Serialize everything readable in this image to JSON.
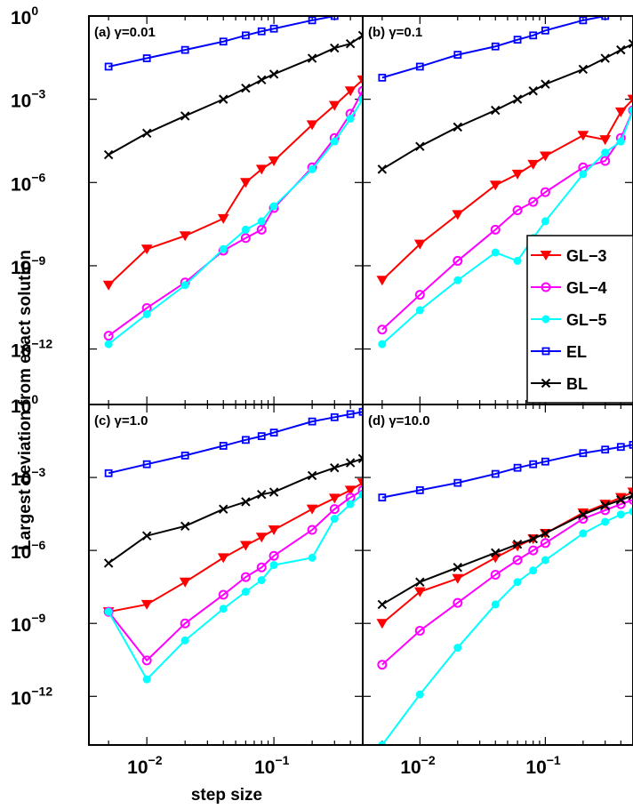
{
  "chart_data": {
    "type": "line",
    "xlabel": "step size",
    "ylabel": "Largest deviation from exact solution",
    "xscale": "log",
    "yscale": "log",
    "xlim": [
      0.0035,
      0.5
    ],
    "ylim": [
      1e-14,
      1
    ],
    "x_ticks": [
      {
        "base": "10",
        "exp": "−2",
        "value": 0.01
      },
      {
        "base": "10",
        "exp": "−1",
        "value": 0.1
      }
    ],
    "y_ticks": [
      {
        "base": "10",
        "exp": "0",
        "value": 1
      },
      {
        "base": "10",
        "exp": "−3",
        "value": 0.001
      },
      {
        "base": "10",
        "exp": "−6",
        "value": 1e-06
      },
      {
        "base": "10",
        "exp": "−9",
        "value": 1e-09
      },
      {
        "base": "10",
        "exp": "−12",
        "value": 1e-12
      }
    ],
    "legend": {
      "placement": "right",
      "entries": [
        {
          "label": "GL−3",
          "color": "#ff0000",
          "marker": "triangle-down"
        },
        {
          "label": "GL−4",
          "color": "#ff00ff",
          "marker": "circle-open"
        },
        {
          "label": "GL−5",
          "color": "#00ffff",
          "marker": "circle-filled"
        },
        {
          "label": "EL",
          "color": "#0000ff",
          "marker": "square-open"
        },
        {
          "label": "BL",
          "color": "#000000",
          "marker": "x"
        }
      ]
    },
    "x": [
      0.005,
      0.01,
      0.02,
      0.04,
      0.06,
      0.08,
      0.1,
      0.2,
      0.3,
      0.4,
      0.5
    ],
    "panels": [
      {
        "title": "(a) γ=0.01",
        "series": [
          {
            "name": "GL−3",
            "values": [
              2e-10,
              4e-09,
              1.2e-08,
              5e-08,
              1e-06,
              3e-06,
              6e-06,
              0.00012,
              0.0006,
              0.002,
              0.005
            ]
          },
          {
            "name": "GL−4",
            "values": [
              3e-12,
              3e-11,
              2.5e-10,
              3.5e-09,
              1e-08,
              2e-08,
              1.2e-07,
              3.5e-06,
              4e-05,
              0.0003,
              0.002
            ]
          },
          {
            "name": "GL−5",
            "values": [
              1.5e-12,
              1.8e-11,
              2e-10,
              4e-09,
              2e-08,
              4e-08,
              1.4e-07,
              3e-06,
              3e-05,
              0.0002,
              0.001
            ]
          },
          {
            "name": "EL",
            "values": [
              0.015,
              0.03,
              0.06,
              0.12,
              0.2,
              0.28,
              0.35,
              0.7,
              1.0,
              1.3,
              1.6
            ]
          },
          {
            "name": "BL",
            "values": [
              1e-05,
              6e-05,
              0.00025,
              0.001,
              0.0025,
              0.005,
              0.008,
              0.03,
              0.07,
              0.1,
              0.2
            ]
          }
        ]
      },
      {
        "title": "(b) γ=0.1",
        "series": [
          {
            "name": "GL−3",
            "values": [
              3e-10,
              6e-09,
              7e-08,
              8e-07,
              2e-06,
              4.5e-06,
              9e-06,
              5e-05,
              3.5e-05,
              0.00035,
              0.001
            ]
          },
          {
            "name": "GL−4",
            "values": [
              5e-12,
              9e-11,
              1.5e-09,
              2e-08,
              1e-07,
              2e-07,
              4.5e-07,
              3.5e-06,
              6e-06,
              4e-05,
              0.0004
            ]
          },
          {
            "name": "GL−5",
            "values": [
              1.5e-12,
              2.5e-11,
              3e-10,
              3e-09,
              1.5e-09,
              1e-08,
              4e-08,
              2e-06,
              1.2e-05,
              3e-05,
              0.0004
            ]
          },
          {
            "name": "EL",
            "values": [
              0.006,
              0.015,
              0.04,
              0.08,
              0.14,
              0.2,
              0.3,
              0.7,
              1.0,
              1.5,
              2.0
            ]
          },
          {
            "name": "BL",
            "values": [
              3e-06,
              2e-05,
              0.0001,
              0.0004,
              0.001,
              0.002,
              0.0035,
              0.012,
              0.03,
              0.06,
              0.1
            ]
          }
        ]
      },
      {
        "title": "(c) γ=1.0",
        "series": [
          {
            "name": "GL−3",
            "values": [
              3e-09,
              6e-09,
              5e-08,
              5e-07,
              1.6e-06,
              3.5e-06,
              7e-06,
              5e-05,
              0.00014,
              0.0003,
              0.0006
            ]
          },
          {
            "name": "GL−4",
            "values": [
              3e-09,
              3e-11,
              1e-09,
              1.5e-08,
              8e-08,
              2e-07,
              6e-07,
              7e-06,
              5e-05,
              0.00015,
              0.0003
            ]
          },
          {
            "name": "GL−5",
            "values": [
              3e-09,
              5e-12,
              2e-10,
              4e-09,
              2e-08,
              6e-08,
              2.5e-07,
              5e-07,
              2e-05,
              8e-05,
              0.0002
            ]
          },
          {
            "name": "EL",
            "values": [
              0.0015,
              0.0035,
              0.008,
              0.02,
              0.035,
              0.05,
              0.07,
              0.2,
              0.3,
              0.4,
              0.5
            ]
          },
          {
            "name": "BL",
            "values": [
              3e-07,
              4e-06,
              1e-05,
              5e-05,
              0.0001,
              0.0002,
              0.00025,
              0.0012,
              0.0025,
              0.004,
              0.006
            ]
          }
        ]
      },
      {
        "title": "(d) γ=10.0",
        "series": [
          {
            "name": "GL−3",
            "values": [
              1e-09,
              2e-08,
              7e-08,
              5e-07,
              1.5e-06,
              3e-06,
              5e-06,
              3.5e-05,
              8e-05,
              0.00015,
              0.00025
            ]
          },
          {
            "name": "GL−4",
            "values": [
              2e-11,
              5e-10,
              7e-09,
              1e-07,
              4e-07,
              1e-06,
              2e-06,
              2e-05,
              4.5e-05,
              8e-05,
              0.00012
            ]
          },
          {
            "name": "GL−5",
            "values": [
              1e-14,
              1.2e-12,
              1e-10,
              6e-09,
              5e-08,
              1.5e-07,
              4e-07,
              5e-06,
              1.5e-05,
              3e-05,
              4e-05
            ]
          },
          {
            "name": "EL",
            "values": [
              0.00015,
              0.0003,
              0.0006,
              0.0014,
              0.0025,
              0.0035,
              0.0045,
              0.01,
              0.014,
              0.018,
              0.022
            ]
          },
          {
            "name": "BL",
            "values": [
              6e-09,
              5e-08,
              2e-07,
              8e-07,
              1.8e-06,
              3e-06,
              5e-06,
              3e-05,
              7e-05,
              0.00012,
              0.00018
            ]
          }
        ]
      }
    ]
  }
}
